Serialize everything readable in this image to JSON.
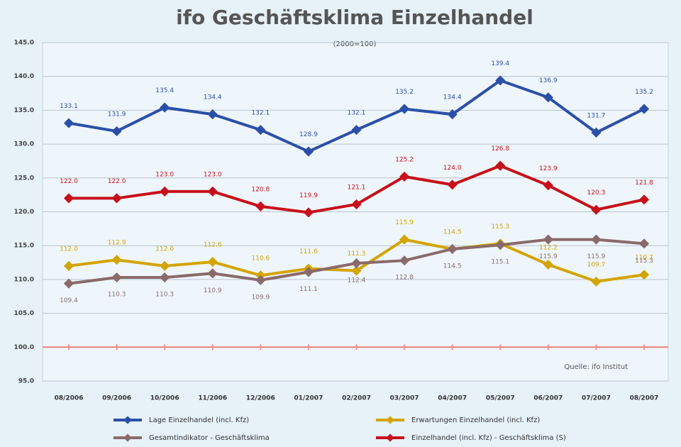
{
  "chart_data": {
    "type": "line",
    "title": "ifo Geschäftsklima Einzelhandel",
    "subtitle": "(2000=100)",
    "source": "Quelle: ifo Institut",
    "categories": [
      "08/2006",
      "09/2006",
      "10/2006",
      "11/2006",
      "12/2006",
      "01/2007",
      "02/2007",
      "03/2007",
      "04/2007",
      "05/2007",
      "06/2007",
      "07/2007",
      "08/2007"
    ],
    "series": [
      {
        "name": "Lage Einzelhandel (incl. Kfz)",
        "color": "#2b4fa8",
        "values": [
          133.1,
          131.9,
          135.4,
          134.4,
          132.1,
          128.9,
          132.1,
          135.2,
          134.4,
          139.4,
          136.9,
          131.7,
          135.2
        ],
        "value_labels": [
          "133.1",
          "131.9",
          "135.4",
          "134.4",
          "132.1",
          "128.9",
          "132.1",
          "135.2",
          "134.4",
          "139.4",
          "136.9",
          "131.7",
          "135.2"
        ]
      },
      {
        "name": "Erwartungen Einzelhandel (incl. Kfz)",
        "color": "#d4a400",
        "values": [
          112.0,
          112.9,
          112.0,
          112.6,
          110.6,
          111.6,
          111.3,
          115.9,
          114.5,
          115.3,
          112.2,
          109.7,
          110.7
        ],
        "value_labels": [
          "112.0",
          "112.9",
          "112.0",
          "112.6",
          "110.6",
          "111.6",
          "111.3",
          "115.9",
          "114.5",
          "115.3",
          "112.2",
          "109.7",
          "110.7"
        ]
      },
      {
        "name": "Gesamtindikator - Geschäftsklima",
        "color": "#8a6a6a",
        "values": [
          109.4,
          110.3,
          110.3,
          110.9,
          109.9,
          111.1,
          112.4,
          112.8,
          114.5,
          115.1,
          115.9,
          115.9,
          115.3
        ],
        "value_labels": [
          "109.4",
          "110.3",
          "110.3",
          "110.9",
          "109.9",
          "111.1",
          "112.4",
          "112.8",
          "114.5",
          "115.1",
          "115.9",
          "115.9",
          "115.3"
        ]
      },
      {
        "name": "Einzelhandel (incl. Kfz) - Geschäftsklima (S)",
        "color": "#c8101a",
        "values": [
          122.0,
          122.0,
          123.0,
          123.0,
          120.8,
          119.9,
          121.1,
          125.2,
          124.0,
          126.8,
          123.9,
          120.3,
          121.8
        ],
        "value_labels": [
          "122.0",
          "122.0",
          "123.0",
          "123.0",
          "120.8",
          "119.9",
          "121.1",
          "125.2",
          "124.0",
          "126.8",
          "123.9",
          "120.3",
          "121.8"
        ]
      }
    ],
    "ylim": [
      95,
      145
    ],
    "yticks": [
      {
        "value": 95,
        "label": "95.0"
      },
      {
        "value": 100,
        "label": "100.0"
      },
      {
        "value": 105,
        "label": "105.0"
      },
      {
        "value": 110,
        "label": "110.0"
      },
      {
        "value": 115,
        "label": "115.0"
      },
      {
        "value": 120,
        "label": "120.0"
      },
      {
        "value": 125,
        "label": "125.0"
      },
      {
        "value": 130,
        "label": "130.0"
      },
      {
        "value": 135,
        "label": "135.0"
      },
      {
        "value": 140,
        "label": "140.0"
      },
      {
        "value": 145,
        "label": "145.0"
      }
    ],
    "reference_line": {
      "value": 100,
      "color": "#f08080"
    },
    "grid": true
  }
}
